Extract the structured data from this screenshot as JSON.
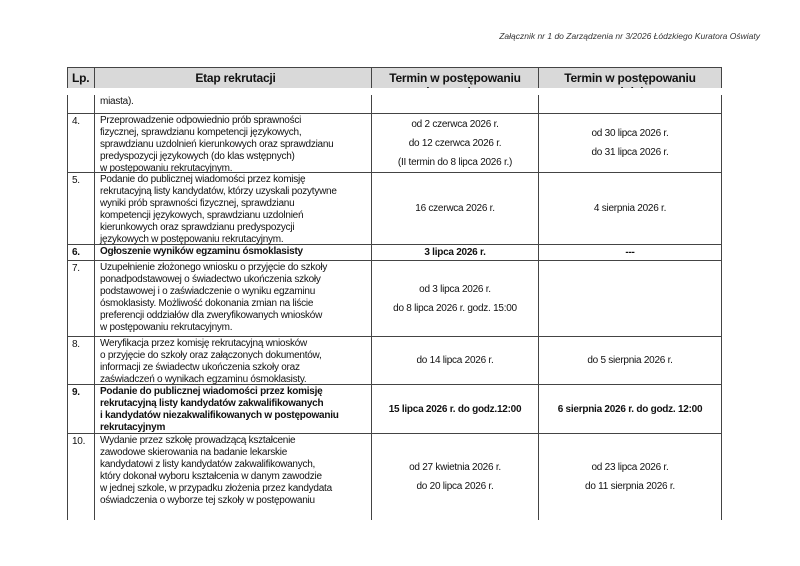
{
  "header_note": "Załącznik nr 1 do Zarządzenia nr 3/2026 Łódzkiego Kuratora Oświaty",
  "table": {
    "headers": [
      "Lp.",
      "Etap rekrutacji",
      "Termin w postępowaniu rekrutacyjnym",
      "Termin w postępowaniu uzupełniającym"
    ],
    "rows": [
      {
        "lp": "",
        "etap": [
          "miasta)."
        ],
        "rekr": [],
        "uzup": []
      },
      {
        "lp": "4.",
        "etap": [
          "Przeprowadzenie odpowiednio prób sprawności",
          "fizycznej, sprawdzianu kompetencji językowych,",
          "sprawdzianu uzdolnień kierunkowych oraz sprawdzianu",
          "predyspozycji językowych (do klas wstępnych)",
          "w postępowaniu rekrutacyjnym."
        ],
        "rekr": [
          "od 2 czerwca 2026 r.",
          "do 12 czerwca 2026  r.",
          "(II termin do 8 lipca 2026 r.)"
        ],
        "uzup": [
          "od 30 lipca 2026 r.",
          "do 31 lipca 2026 r."
        ]
      },
      {
        "lp": "5.",
        "etap": [
          "Podanie do publicznej wiadomości przez komisję",
          "rekrutacyjną listy kandydatów, którzy uzyskali pozytywne",
          "wyniki prób sprawności fizycznej, sprawdzianu",
          "kompetencji językowych, sprawdzianu uzdolnień",
          "kierunkowych oraz sprawdzianu predyspozycji",
          "językowych w postępowaniu rekrutacyjnym."
        ],
        "rekr": [
          "16 czerwca 2026 r."
        ],
        "uzup": [
          "4 sierpnia 2026 r."
        ]
      },
      {
        "lp": "6.",
        "bold": true,
        "etap": [
          "Ogłoszenie wyników egzaminu ósmoklasisty"
        ],
        "rekr": [
          "3 lipca 2026 r."
        ],
        "uzup": [
          "---"
        ]
      },
      {
        "lp": "7.",
        "etap": [
          "Uzupełnienie złożonego wniosku o przyjęcie do szkoły",
          "ponadpodstawowej o świadectwo ukończenia szkoły",
          "podstawowej i o zaświadczenie o wyniku egzaminu",
          "ósmoklasisty. Możliwość dokonania zmian na liście",
          "preferencji oddziałów dla zweryfikowanych wniosków",
          "w postępowaniu rekrutacyjnym."
        ],
        "rekr": [
          "od 3 lipca 2026 r.",
          "do 8 lipca 2026 r. godz. 15:00"
        ],
        "uzup": []
      },
      {
        "lp": "8.",
        "etap": [
          "Weryfikacja przez komisję rekrutacyjną wniosków",
          "o przyjęcie do szkoły oraz załączonych dokumentów,",
          "informacji ze świadectw ukończenia szkoły oraz",
          "zaświadczeń o wynikach egzaminu ósmoklasisty."
        ],
        "rekr": [
          "do 14 lipca 2026 r."
        ],
        "uzup": [
          "do 5 sierpnia 2026 r."
        ]
      },
      {
        "lp": "9.",
        "bold": true,
        "etap": [
          "Podanie do publicznej wiadomości przez komisję",
          "rekrutacyjną listy kandydatów zakwalifikowanych",
          "i kandydatów niezakwalifikowanych w postępowaniu",
          "rekrutacyjnym"
        ],
        "rekr": [
          "15 lipca 2026 r. do godz.12:00"
        ],
        "uzup": [
          "6 sierpnia 2026 r. do godz. 12:00"
        ]
      },
      {
        "lp": "10.",
        "etap": [
          "Wydanie przez szkołę prowadzącą kształcenie",
          "zawodowe skierowania na badanie lekarskie",
          "kandydatowi z listy kandydatów zakwalifikowanych,",
          "który dokonał wyboru kształcenia w danym zawodzie",
          "w jednej szkole, w przypadku złożenia przez kandydata",
          "oświadczenia o wyborze tej szkoły w postępowaniu"
        ],
        "rekr": [
          "od 27 kwietnia 2026 r.",
          "do 20 lipca 2026 r."
        ],
        "uzup": [
          "od 23 lipca 2026 r.",
          "do 11 sierpnia 2026 r."
        ]
      }
    ]
  }
}
